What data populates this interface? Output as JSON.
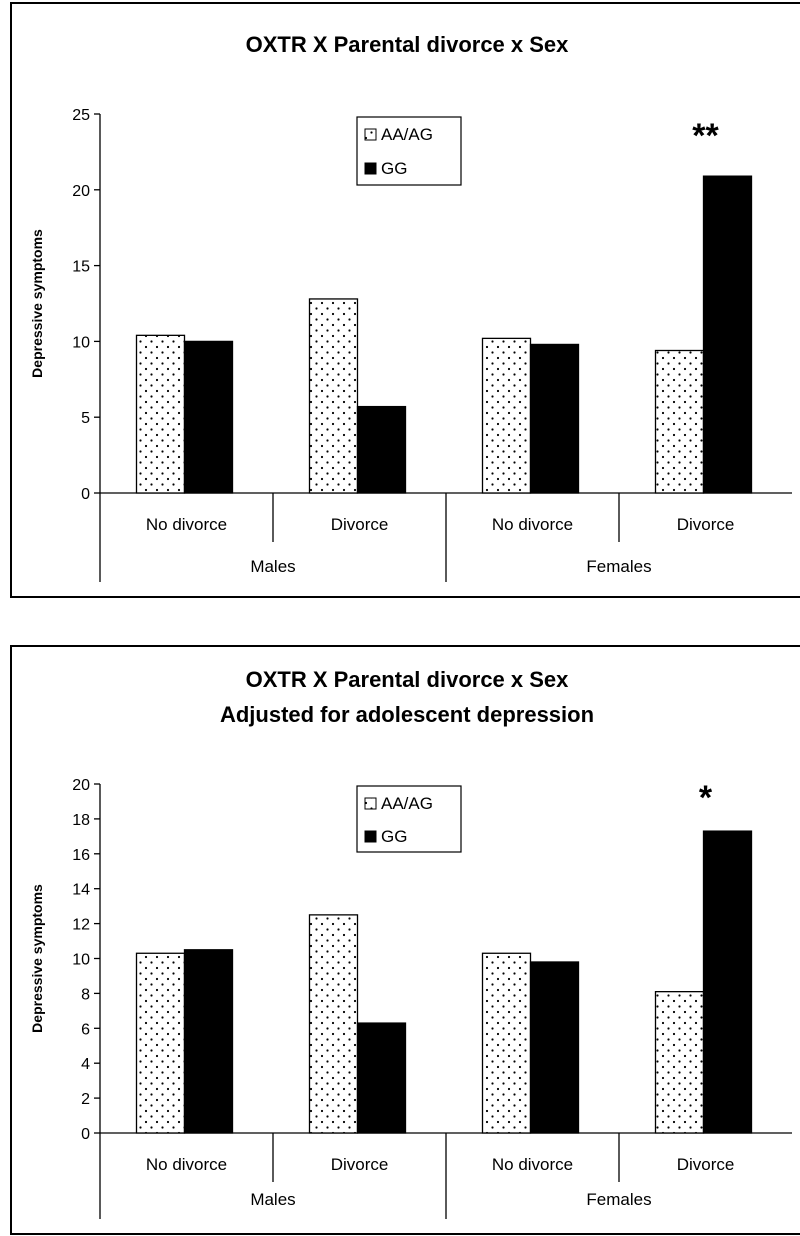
{
  "chart_data": [
    {
      "type": "bar",
      "title": "OXTR X Parental divorce x Sex",
      "subtitle": "",
      "ylabel": "Depressive symptoms",
      "xlabel": "",
      "ylim": [
        0,
        25
      ],
      "yticks": [
        0,
        5,
        10,
        15,
        20,
        25
      ],
      "categories": [
        "No divorce",
        "Divorce",
        "No divorce",
        "Divorce"
      ],
      "groups": [
        {
          "label": "Males",
          "categories": [
            "No divorce",
            "Divorce"
          ]
        },
        {
          "label": "Females",
          "categories": [
            "No divorce",
            "Divorce"
          ]
        }
      ],
      "series": [
        {
          "name": "AA/AG",
          "values": [
            10.4,
            12.8,
            10.2,
            9.4
          ],
          "fill": "dots"
        },
        {
          "name": "GG",
          "values": [
            10.0,
            5.7,
            9.8,
            20.9
          ],
          "fill": "solid"
        }
      ],
      "annotations": [
        {
          "text": "**",
          "category_index": 3
        }
      ],
      "legend_position": "top-center",
      "grid": false
    },
    {
      "type": "bar",
      "title": "OXTR X Parental divorce x Sex",
      "subtitle": "Adjusted for adolescent depression",
      "ylabel": "Depressive symptoms",
      "xlabel": "",
      "ylim": [
        0,
        20
      ],
      "yticks": [
        0,
        2,
        4,
        6,
        8,
        10,
        12,
        14,
        16,
        18,
        20
      ],
      "categories": [
        "No divorce",
        "Divorce",
        "No divorce",
        "Divorce"
      ],
      "groups": [
        {
          "label": "Males",
          "categories": [
            "No divorce",
            "Divorce"
          ]
        },
        {
          "label": "Females",
          "categories": [
            "No divorce",
            "Divorce"
          ]
        }
      ],
      "series": [
        {
          "name": "AA/AG",
          "values": [
            10.3,
            12.5,
            10.3,
            8.1
          ],
          "fill": "dots"
        },
        {
          "name": "GG",
          "values": [
            10.5,
            6.3,
            9.8,
            17.3
          ],
          "fill": "solid"
        }
      ],
      "annotations": [
        {
          "text": "*",
          "category_index": 3
        }
      ],
      "legend_position": "top-center",
      "grid": false
    }
  ]
}
